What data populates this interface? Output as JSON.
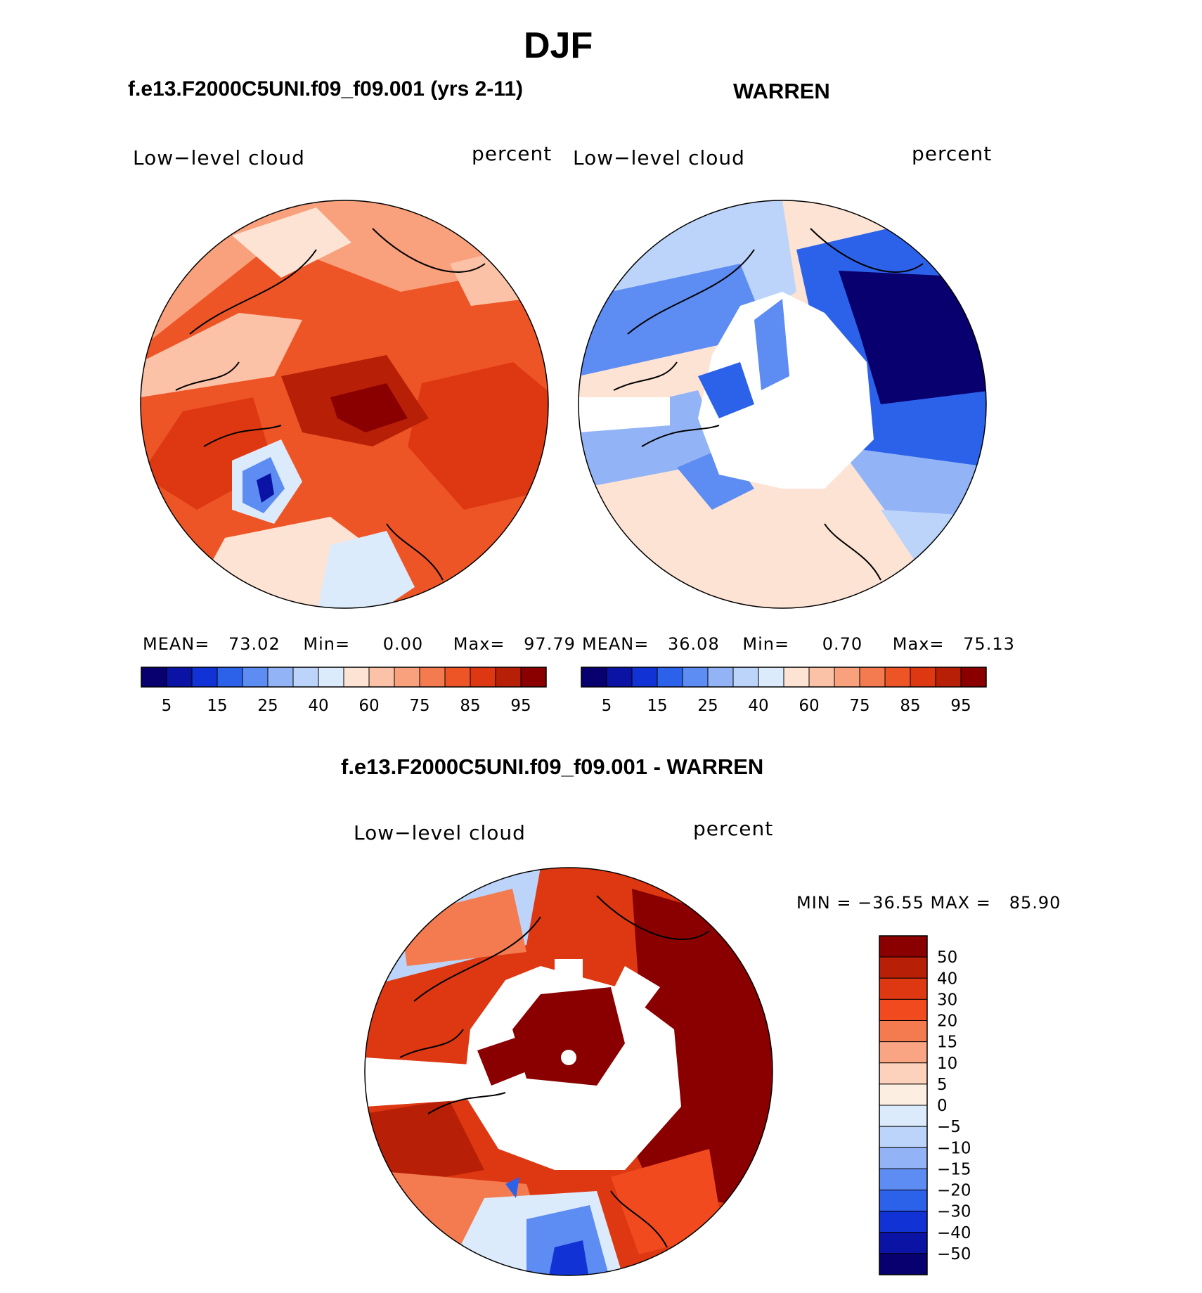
{
  "main_title": "DJF",
  "panels": [
    {
      "title": "f.e13.F2000C5UNI.f09_f09.001 (yrs 2-11)",
      "variable": "Low−level cloud",
      "units": "percent",
      "stats": {
        "mean_label": "MEAN=",
        "mean": "73.02",
        "min_label": "Min=",
        "min": "0.00",
        "max_label": "Max=",
        "max": "97.79"
      },
      "colorbar_labels": [
        "5",
        "15",
        "25",
        "40",
        "60",
        "75",
        "85",
        "95"
      ]
    },
    {
      "title": "WARREN",
      "variable": "Low−level cloud",
      "units": "percent",
      "stats": {
        "mean_label": "MEAN=",
        "mean": "36.08",
        "min_label": "Min=",
        "min": "0.70",
        "max_label": "Max=",
        "max": "75.13"
      },
      "colorbar_labels": [
        "5",
        "15",
        "25",
        "40",
        "60",
        "75",
        "85",
        "95"
      ]
    }
  ],
  "difference": {
    "title": "f.e13.F2000C5UNI.f09_f09.001 - WARREN",
    "variable": "Low−level cloud",
    "units": "percent",
    "min_max_text": "MIN = −36.55 MAX =   85.90",
    "colorbar_labels": [
      "50",
      "40",
      "30",
      "20",
      "15",
      "10",
      "5",
      "0",
      "−5",
      "−10",
      "−15",
      "−20",
      "−30",
      "−40",
      "−50"
    ]
  },
  "palettes": {
    "main": [
      "#08006e",
      "#0a13a4",
      "#1133d6",
      "#2c62ea",
      "#5d8cf2",
      "#92b4f6",
      "#bcd4fa",
      "#dcebfb",
      "#fde3d4",
      "#fbc2a8",
      "#f9a07c",
      "#f47b50",
      "#ee5526",
      "#dd3812",
      "#b81f07",
      "#8a0000"
    ],
    "diff_top_to_bottom": [
      "#8a0000",
      "#b81f07",
      "#dd3812",
      "#f04a1e",
      "#f47b50",
      "#f9a584",
      "#fdd2bc",
      "#fdeee2",
      "#dcebfb",
      "#bcd4fa",
      "#92b4f6",
      "#5d8cf2",
      "#2c62ea",
      "#1133d6",
      "#0a13a4",
      "#08006e"
    ]
  }
}
